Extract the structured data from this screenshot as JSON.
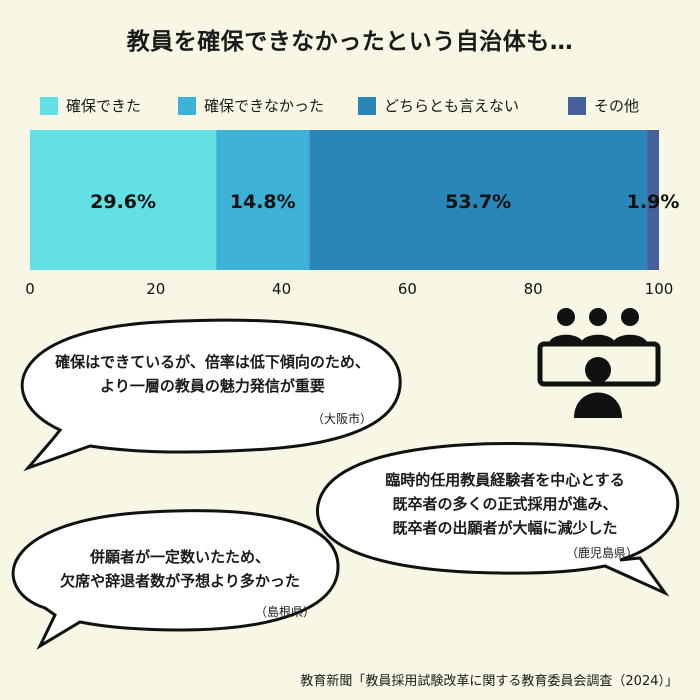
{
  "title": "教員を確保できなかったという自治体も…",
  "colors": {
    "background": "#f8f6e4",
    "series": [
      "#63e0e3",
      "#3eb1d6",
      "#2a85b8",
      "#46609a"
    ]
  },
  "chart_data": {
    "type": "bar",
    "orientation": "horizontal-stacked",
    "legend_position": "top",
    "categories": [
      ""
    ],
    "series": [
      {
        "name": "確保できた",
        "values": [
          29.6
        ],
        "label": "29.6%"
      },
      {
        "name": "確保できなかった",
        "values": [
          14.8
        ],
        "label": "14.8%"
      },
      {
        "name": "どちらとも言えない",
        "values": [
          53.7
        ],
        "label": "53.7%"
      },
      {
        "name": "その他",
        "values": [
          1.9
        ],
        "label": "1.9%"
      }
    ],
    "xlim": [
      0,
      100
    ],
    "xticks": [
      "0",
      "20",
      "40",
      "60",
      "80",
      "100"
    ],
    "grid": false
  },
  "comments": [
    {
      "lines": [
        "確保はできているが、倍率は低下傾向のため、",
        "より一層の教員の魅力発信が重要"
      ],
      "source": "（大阪市）"
    },
    {
      "lines": [
        "臨時的任用教員経験者を中心とする",
        "既卒者の多くの正式採用が進み、",
        "既卒者の出願者が大幅に減少した"
      ],
      "source": "（鹿児島県）"
    },
    {
      "lines": [
        "併願者が一定数いたため、",
        "欠席や辞退者数が予想より多かった"
      ],
      "source": "（島根県）"
    }
  ],
  "icon": "interview-panel-icon",
  "footer": "教育新聞「教員採用試験改革に関する教育委員会調査（2024）」"
}
